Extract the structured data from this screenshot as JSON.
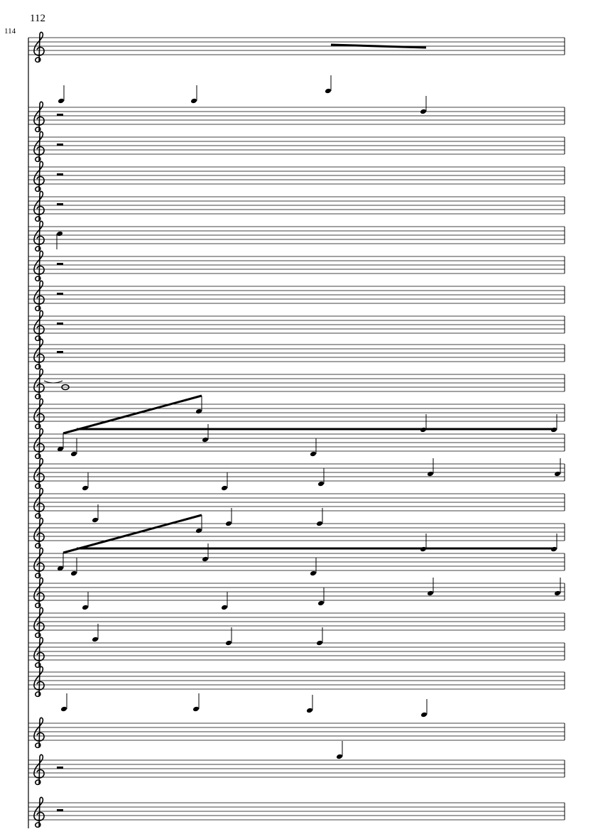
{
  "page_number": "112",
  "measure_number": "114"
}
